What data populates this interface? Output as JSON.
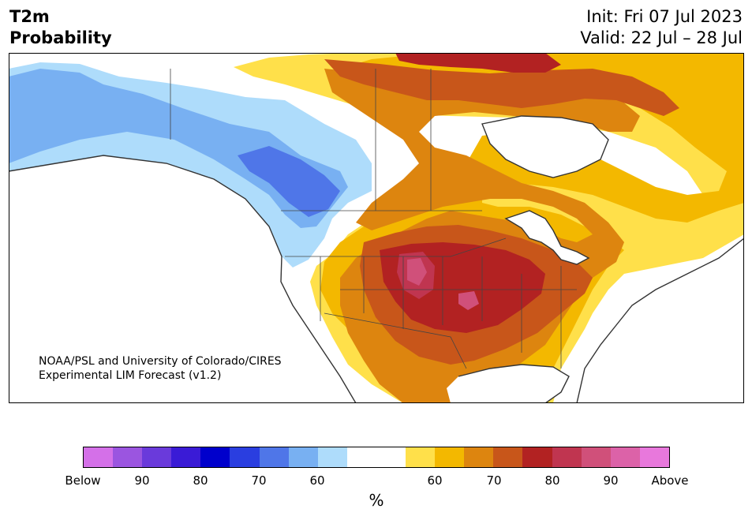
{
  "header": {
    "variable": "T2m",
    "product": "Probability",
    "init": "Init: Fri 07 Jul 2023",
    "valid": "Valid: 22 Jul – 28 Jul"
  },
  "credit": {
    "line1": "NOAA/PSL and University of Colorado/CIRES",
    "line2": "Experimental LIM Forecast (v1.2)"
  },
  "colorbar": {
    "colors": [
      "#d470e8",
      "#9b55e0",
      "#6a3adb",
      "#3a1bd6",
      "#0000cc",
      "#2a3ee0",
      "#4f76e8",
      "#78b0f2",
      "#aedcfb",
      "#ffffff",
      "#ffffff",
      "#ffe04a",
      "#f3b800",
      "#dd850f",
      "#c8561a",
      "#b22222",
      "#c03550",
      "#d0507a",
      "#dc62a8",
      "#e878dc"
    ],
    "labels": [
      "Below",
      "90",
      "80",
      "70",
      "60",
      "60",
      "70",
      "80",
      "90",
      "Above"
    ],
    "unit": "%"
  },
  "map": {
    "region": "North America",
    "palette": {
      "ocean": "#ffffff",
      "blue_light": "#aedcfb",
      "blue_mid": "#78b0f2",
      "blue_dark": "#4f76e8",
      "yellow": "#ffe04a",
      "gold": "#f3b800",
      "orange": "#dd850f",
      "burnt": "#c8561a",
      "red": "#b22222",
      "crimson": "#c03550",
      "pink": "#d0507a",
      "outline": "#333333"
    }
  }
}
